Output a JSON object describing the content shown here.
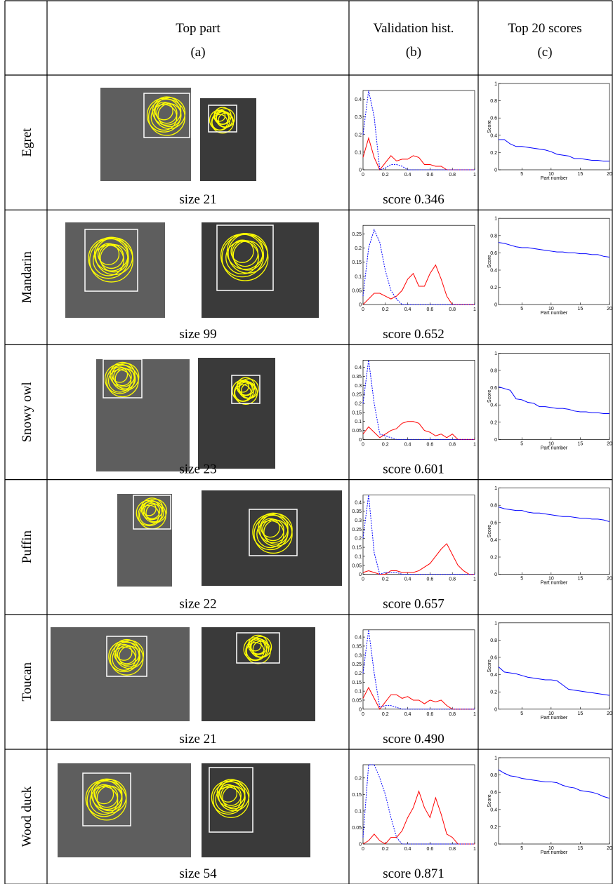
{
  "header": {
    "col_a": "Top part",
    "col_a_tag": "(a)",
    "col_b": "Validation hist.",
    "col_b_tag": "(b)",
    "col_c": "Top 20 scores",
    "col_c_tag": "(c)"
  },
  "hist_axes": {
    "x": [
      0,
      0.05,
      0.1,
      0.15,
      0.2,
      0.25,
      0.3,
      0.35,
      0.4,
      0.45,
      0.5,
      0.55,
      0.6,
      0.65,
      0.7,
      0.75,
      0.8,
      0.85,
      0.9,
      0.95,
      1
    ],
    "xlim": [
      0,
      1
    ],
    "xticks": [
      0,
      0.2,
      0.4,
      0.6,
      0.8,
      1
    ]
  },
  "score_axes": {
    "xlabel": "Part number",
    "ylabel": "Score",
    "x": [
      1,
      2,
      3,
      4,
      5,
      6,
      7,
      8,
      9,
      10,
      11,
      12,
      13,
      14,
      15,
      16,
      17,
      18,
      19,
      20
    ],
    "xlim": [
      1,
      20
    ],
    "xticks": [
      5,
      10,
      15,
      20
    ],
    "ylim": [
      0,
      1
    ],
    "yticks": [
      0,
      0.2,
      0.4,
      0.6,
      0.8,
      1
    ],
    "color": "#0000ff"
  },
  "rows": [
    {
      "name": "Egret",
      "size": "size 21",
      "score": "score 0.346",
      "hist": {
        "ylim": [
          0,
          0.45
        ],
        "yticks": [
          0,
          0.1,
          0.2,
          0.3,
          0.4
        ],
        "series": [
          {
            "color": "#ff0000",
            "style": "solid",
            "values": [
              0.07,
              0.18,
              0.07,
              0,
              0.04,
              0.08,
              0.05,
              0.06,
              0.06,
              0.08,
              0.07,
              0.03,
              0.03,
              0.02,
              0.02,
              0,
              0,
              0,
              0,
              0,
              0
            ]
          },
          {
            "color": "#0000ff",
            "style": "dashed",
            "values": [
              0.2,
              0.45,
              0.3,
              0,
              0.01,
              0.03,
              0.03,
              0.02,
              0,
              0,
              0,
              0,
              0,
              0,
              0,
              0,
              0,
              0,
              0,
              0,
              0
            ]
          }
        ]
      },
      "scores": [
        0.35,
        0.35,
        0.3,
        0.27,
        0.27,
        0.26,
        0.25,
        0.24,
        0.23,
        0.21,
        0.18,
        0.17,
        0.16,
        0.13,
        0.13,
        0.12,
        0.11,
        0.11,
        0.1,
        0.1
      ]
    },
    {
      "name": "Mandarin",
      "size": "size 99",
      "score": "score 0.652",
      "hist": {
        "ylim": [
          0,
          0.28
        ],
        "yticks": [
          0,
          0.05,
          0.1,
          0.15,
          0.2,
          0.25
        ],
        "series": [
          {
            "color": "#ff0000",
            "style": "solid",
            "values": [
              0,
              0.02,
              0.04,
              0.04,
              0.03,
              0.02,
              0.03,
              0.05,
              0.09,
              0.11,
              0.065,
              0.065,
              0.11,
              0.14,
              0.09,
              0.03,
              0,
              0,
              0,
              0,
              0
            ]
          },
          {
            "color": "#0000ff",
            "style": "dashed",
            "values": [
              0.03,
              0.2,
              0.265,
              0.22,
              0.12,
              0.05,
              0.02,
              0,
              0,
              0,
              0,
              0,
              0,
              0,
              0,
              0,
              0,
              0,
              0,
              0,
              0
            ]
          }
        ]
      },
      "scores": [
        0.72,
        0.71,
        0.69,
        0.67,
        0.66,
        0.66,
        0.65,
        0.64,
        0.63,
        0.62,
        0.61,
        0.61,
        0.6,
        0.6,
        0.59,
        0.59,
        0.58,
        0.58,
        0.56,
        0.55
      ]
    },
    {
      "name": "Snowy owl",
      "size": "size 23",
      "score": "score 0.601",
      "hist": {
        "ylim": [
          0,
          0.44
        ],
        "yticks": [
          0,
          0.05,
          0.1,
          0.15,
          0.2,
          0.25,
          0.3,
          0.35,
          0.4
        ],
        "series": [
          {
            "color": "#ff0000",
            "style": "solid",
            "values": [
              0.03,
              0.07,
              0.04,
              0.01,
              0.03,
              0.05,
              0.06,
              0.09,
              0.1,
              0.1,
              0.09,
              0.05,
              0.04,
              0.02,
              0.03,
              0.01,
              0.03,
              0,
              0,
              0,
              0
            ]
          },
          {
            "color": "#0000ff",
            "style": "dashed",
            "values": [
              0.2,
              0.44,
              0.2,
              0.03,
              0.02,
              0.01,
              0,
              0,
              0,
              0,
              0,
              0,
              0,
              0,
              0,
              0,
              0,
              0,
              0,
              0,
              0
            ]
          }
        ]
      },
      "scores": [
        0.61,
        0.59,
        0.57,
        0.47,
        0.46,
        0.43,
        0.42,
        0.38,
        0.38,
        0.37,
        0.36,
        0.36,
        0.35,
        0.33,
        0.32,
        0.32,
        0.31,
        0.31,
        0.3,
        0.3
      ]
    },
    {
      "name": "Puffin",
      "size": "size 22",
      "score": "score 0.657",
      "hist": {
        "ylim": [
          0,
          0.44
        ],
        "yticks": [
          0,
          0.05,
          0.1,
          0.15,
          0.2,
          0.25,
          0.3,
          0.35,
          0.4
        ],
        "series": [
          {
            "color": "#ff0000",
            "style": "solid",
            "values": [
              0.01,
              0.02,
              0.01,
              0,
              0,
              0.02,
              0.02,
              0.01,
              0.01,
              0.01,
              0.02,
              0.04,
              0.06,
              0.1,
              0.14,
              0.17,
              0.11,
              0.05,
              0.02,
              0,
              0
            ]
          },
          {
            "color": "#0000ff",
            "style": "dashed",
            "values": [
              0.2,
              0.44,
              0.12,
              0,
              0.01,
              0.01,
              0.01,
              0,
              0,
              0,
              0,
              0,
              0,
              0,
              0,
              0,
              0,
              0,
              0,
              0,
              0
            ]
          }
        ]
      },
      "scores": [
        0.78,
        0.76,
        0.75,
        0.74,
        0.74,
        0.72,
        0.71,
        0.71,
        0.7,
        0.69,
        0.68,
        0.67,
        0.67,
        0.66,
        0.65,
        0.65,
        0.64,
        0.64,
        0.63,
        0.61
      ]
    },
    {
      "name": "Toucan",
      "size": "size 21",
      "score": "score 0.490",
      "hist": {
        "ylim": [
          0,
          0.44
        ],
        "yticks": [
          0,
          0.05,
          0.1,
          0.15,
          0.2,
          0.25,
          0.3,
          0.35,
          0.4
        ],
        "series": [
          {
            "color": "#ff0000",
            "style": "solid",
            "values": [
              0.06,
              0.12,
              0.06,
              0,
              0.04,
              0.08,
              0.08,
              0.06,
              0.07,
              0.05,
              0.05,
              0.03,
              0.05,
              0.04,
              0.05,
              0.02,
              0,
              0,
              0,
              0,
              0
            ]
          },
          {
            "color": "#0000ff",
            "style": "dashed",
            "values": [
              0.2,
              0.44,
              0.2,
              0.01,
              0.02,
              0.02,
              0.01,
              0,
              0,
              0,
              0,
              0,
              0,
              0,
              0,
              0,
              0,
              0,
              0,
              0,
              0
            ]
          }
        ]
      },
      "scores": [
        0.49,
        0.43,
        0.42,
        0.41,
        0.39,
        0.37,
        0.36,
        0.35,
        0.34,
        0.34,
        0.33,
        0.28,
        0.23,
        0.22,
        0.21,
        0.2,
        0.19,
        0.18,
        0.17,
        0.16
      ]
    },
    {
      "name": "Wood duck",
      "size": "size 54",
      "score": "score 0.871",
      "hist": {
        "ylim": [
          0,
          0.24
        ],
        "yticks": [
          0,
          0.05,
          0.1,
          0.15,
          0.2
        ],
        "series": [
          {
            "color": "#ff0000",
            "style": "solid",
            "values": [
              0,
              0.01,
              0.03,
              0.01,
              0,
              0.02,
              0.02,
              0.04,
              0.08,
              0.11,
              0.16,
              0.11,
              0.08,
              0.14,
              0.09,
              0.03,
              0.02,
              0,
              0,
              0,
              0
            ]
          },
          {
            "color": "#0000ff",
            "style": "dashed",
            "values": [
              0.02,
              0.24,
              0.24,
              0.2,
              0.15,
              0.08,
              0.02,
              0,
              0,
              0,
              0,
              0,
              0,
              0,
              0,
              0,
              0,
              0,
              0,
              0,
              0
            ]
          }
        ]
      },
      "scores": [
        0.86,
        0.82,
        0.79,
        0.78,
        0.76,
        0.75,
        0.74,
        0.73,
        0.72,
        0.72,
        0.71,
        0.68,
        0.66,
        0.65,
        0.62,
        0.61,
        0.6,
        0.58,
        0.55,
        0.53
      ]
    }
  ]
}
